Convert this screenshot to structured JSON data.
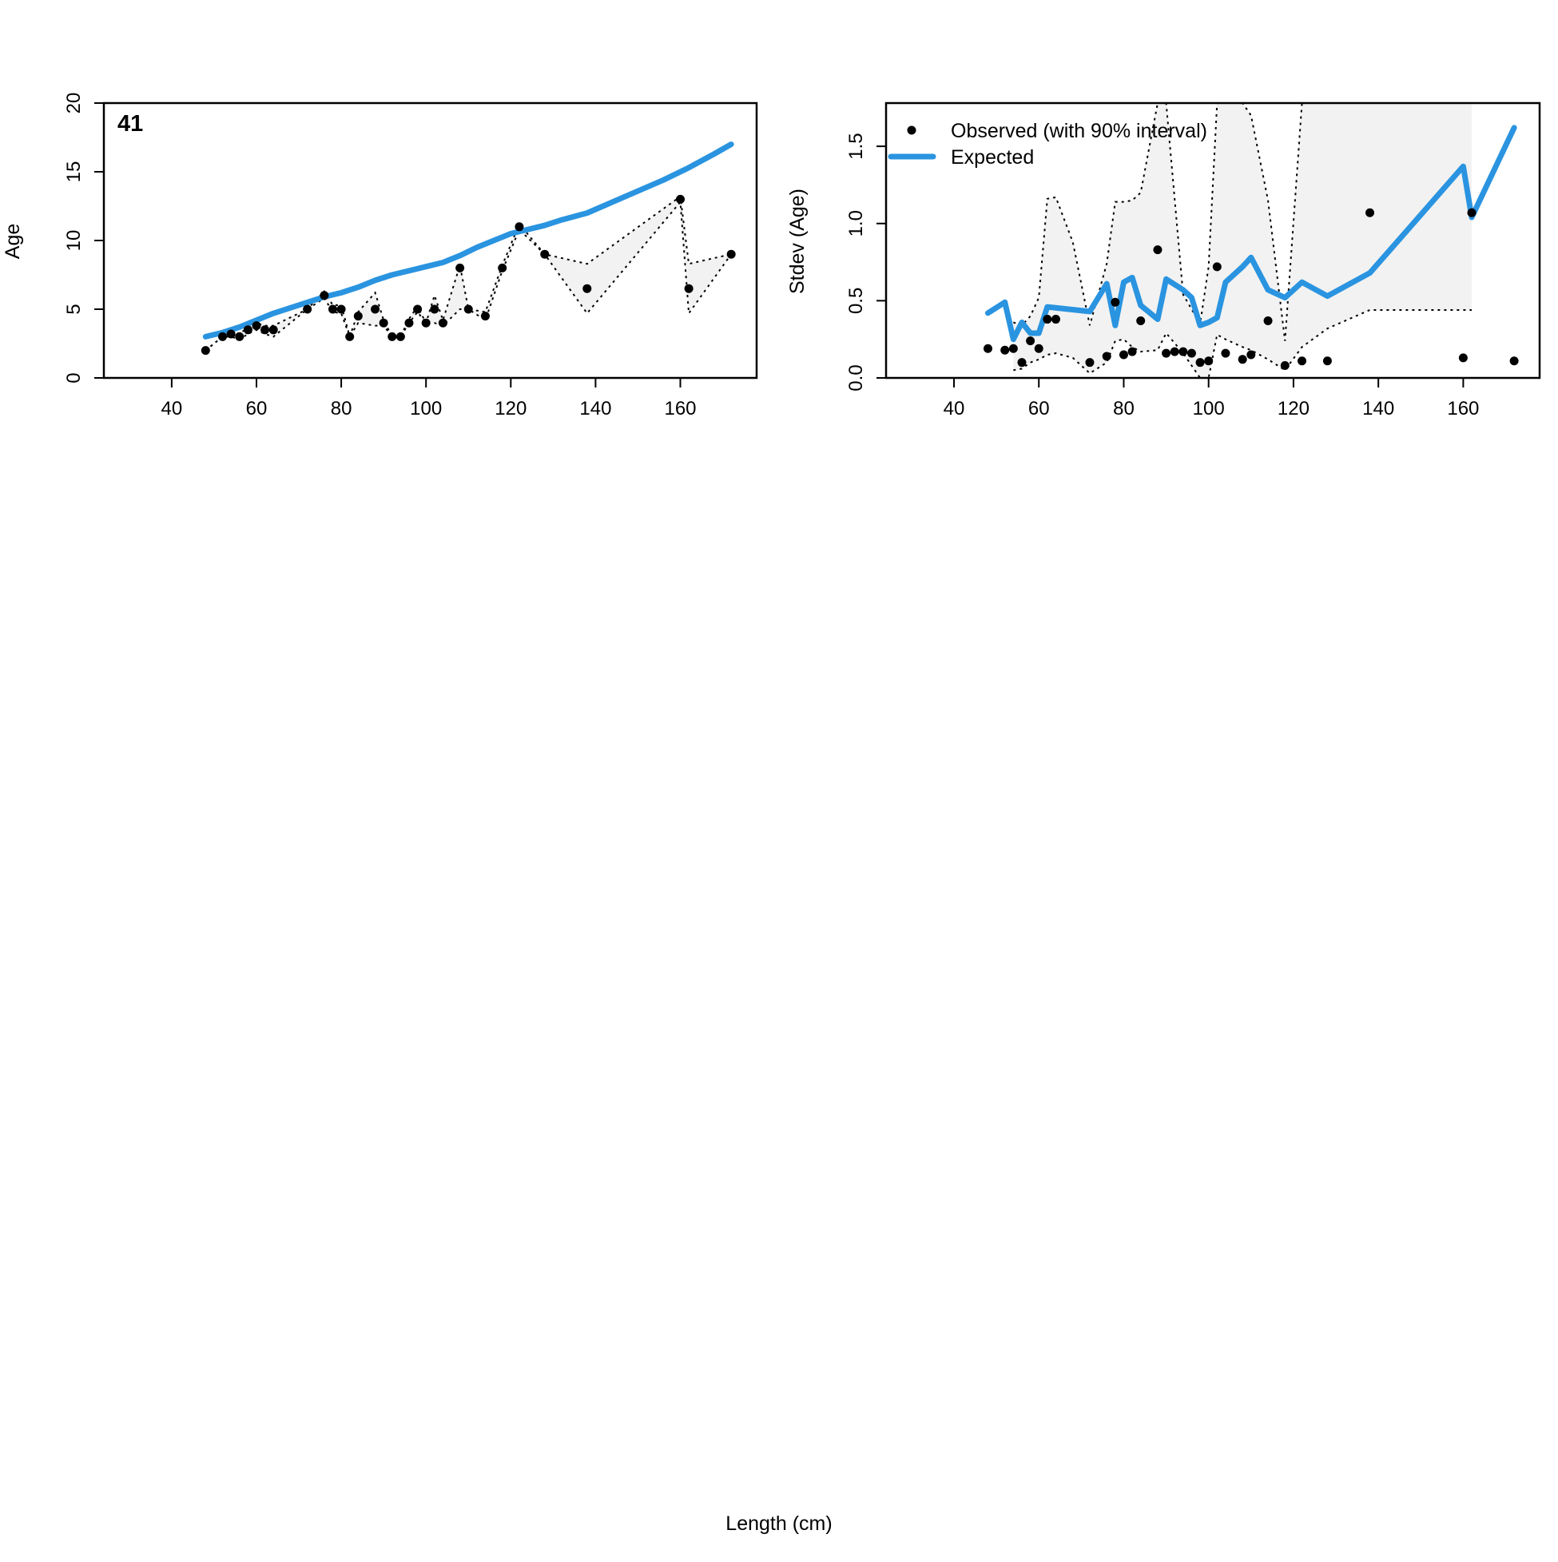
{
  "figure": {
    "common_xlabel": "Length (cm)"
  },
  "chart_data": [
    {
      "type": "line",
      "panel_label": "41",
      "xlabel": "",
      "ylabel": "Age",
      "xlim": [
        24,
        178
      ],
      "ylim": [
        0,
        20
      ],
      "xticks": [
        40,
        60,
        80,
        100,
        120,
        140,
        160
      ],
      "yticks": [
        0,
        5,
        10,
        15,
        20
      ],
      "series": [
        {
          "name": "Expected",
          "style": "line",
          "color": "#2a94e0",
          "x": [
            48,
            52,
            56,
            60,
            64,
            68,
            72,
            76,
            80,
            84,
            88,
            92,
            96,
            100,
            104,
            108,
            112,
            116,
            120,
            124,
            128,
            132,
            138,
            144,
            150,
            156,
            162,
            168,
            172
          ],
          "y": [
            3.0,
            3.3,
            3.7,
            4.2,
            4.7,
            5.1,
            5.5,
            5.9,
            6.2,
            6.6,
            7.1,
            7.5,
            7.8,
            8.1,
            8.4,
            8.9,
            9.5,
            10.0,
            10.5,
            10.8,
            11.1,
            11.5,
            12.0,
            12.8,
            13.6,
            14.4,
            15.3,
            16.3,
            17.0
          ]
        },
        {
          "name": "Observed",
          "style": "points",
          "color": "#000000",
          "x": [
            48,
            52,
            54,
            56,
            58,
            60,
            62,
            64,
            72,
            76,
            78,
            80,
            82,
            84,
            88,
            90,
            92,
            94,
            96,
            98,
            100,
            102,
            104,
            108,
            110,
            114,
            118,
            122,
            128,
            138,
            160,
            162,
            172
          ],
          "y": [
            2,
            3,
            3.2,
            3,
            3.5,
            3.8,
            3.5,
            3.5,
            5,
            6,
            5,
            5,
            3,
            4.5,
            5,
            4,
            3,
            3,
            4,
            5,
            4,
            5,
            4,
            8,
            5,
            4.5,
            8,
            11,
            9,
            6.5,
            13,
            6.5,
            9
          ]
        },
        {
          "name": "90% interval",
          "style": "band",
          "fill": "#f2f2f2",
          "x": [
            48,
            52,
            54,
            56,
            58,
            60,
            62,
            64,
            72,
            76,
            78,
            80,
            82,
            84,
            88,
            90,
            92,
            94,
            96,
            98,
            100,
            102,
            104,
            108,
            110,
            114,
            118,
            122,
            128,
            138,
            160,
            162,
            172
          ],
          "lower": [
            2,
            3,
            3.0,
            2.8,
            3.2,
            3.5,
            3.2,
            3.0,
            5,
            5.8,
            4.8,
            4.7,
            3,
            4.0,
            3.8,
            3.8,
            3,
            3,
            4,
            4.8,
            4,
            4.0,
            3.8,
            5,
            5,
            4.2,
            7.8,
            10.8,
            9,
            4.7,
            12.8,
            4.7,
            9
          ],
          "upper": [
            2,
            3,
            3.4,
            3.2,
            3.7,
            4.0,
            3.8,
            3.8,
            5,
            6.3,
            5.3,
            5.3,
            3,
            4.8,
            6.2,
            4.2,
            3,
            3,
            4.3,
            5.2,
            4,
            6.0,
            4.2,
            8.2,
            5,
            4.8,
            8.2,
            11.2,
            9,
            8.3,
            13.2,
            8.3,
            9
          ]
        }
      ]
    },
    {
      "type": "line",
      "xlabel": "",
      "ylabel": "Stdev (Age)",
      "xlim": [
        24,
        178
      ],
      "ylim": [
        0,
        1.78
      ],
      "xticks": [
        40,
        60,
        80,
        100,
        120,
        140,
        160
      ],
      "yticks": [
        "0.0",
        "0.5",
        "1.0",
        "1.5"
      ],
      "legend": {
        "position": "top-left",
        "entries": [
          {
            "label": "Observed (with 90% interval)",
            "symbol": "point"
          },
          {
            "label": "Expected",
            "symbol": "line"
          }
        ]
      },
      "series": [
        {
          "name": "Expected",
          "style": "line",
          "color": "#2a94e0",
          "x": [
            48,
            52,
            54,
            56,
            58,
            60,
            62,
            72,
            76,
            78,
            80,
            82,
            84,
            88,
            90,
            94,
            96,
            98,
            100,
            102,
            104,
            108,
            110,
            114,
            118,
            122,
            128,
            138,
            160,
            162,
            172
          ],
          "y": [
            0.42,
            0.49,
            0.25,
            0.36,
            0.29,
            0.29,
            0.46,
            0.43,
            0.61,
            0.34,
            0.62,
            0.65,
            0.47,
            0.38,
            0.64,
            0.57,
            0.52,
            0.34,
            0.36,
            0.39,
            0.62,
            0.72,
            0.78,
            0.57,
            0.52,
            0.62,
            0.53,
            0.68,
            1.37,
            1.04,
            1.62
          ]
        },
        {
          "name": "Observed (with 90% interval)",
          "style": "points",
          "color": "#000000",
          "x": [
            48,
            52,
            54,
            56,
            58,
            60,
            62,
            64,
            72,
            76,
            78,
            80,
            82,
            84,
            88,
            90,
            92,
            94,
            96,
            98,
            100,
            102,
            104,
            108,
            110,
            114,
            118,
            122,
            128,
            138,
            160,
            162,
            172
          ],
          "y": [
            0.19,
            0.18,
            0.19,
            0.1,
            0.24,
            0.19,
            0.38,
            0.38,
            0.1,
            0.14,
            0.49,
            0.15,
            0.17,
            0.37,
            0.83,
            0.16,
            0.17,
            0.17,
            0.16,
            0.1,
            0.11,
            0.72,
            0.16,
            0.12,
            0.15,
            0.37,
            0.08,
            0.11,
            0.11,
            1.07,
            0.13,
            1.07,
            0.11
          ]
        },
        {
          "name": "90% interval",
          "style": "band",
          "fill": "#f2f2f2",
          "x": [
            54,
            56,
            58,
            60,
            62,
            64,
            68,
            72,
            76,
            78,
            80,
            82,
            84,
            88,
            90,
            94,
            98,
            100,
            102,
            104,
            108,
            110,
            114,
            118,
            122,
            128,
            138,
            162
          ],
          "lower": [
            0.05,
            0.06,
            0.1,
            0.12,
            0.15,
            0.16,
            0.13,
            0.03,
            0.1,
            0.24,
            0.25,
            0.2,
            0.17,
            0.18,
            0.29,
            0.16,
            0.0,
            0.0,
            0.28,
            0.25,
            0.2,
            0.18,
            0.12,
            0.05,
            0.2,
            0.32,
            0.44,
            0.44
          ],
          "upper": [
            0.36,
            0.34,
            0.4,
            0.52,
            1.16,
            1.17,
            0.88,
            0.34,
            0.74,
            1.14,
            1.14,
            1.15,
            1.2,
            1.78,
            1.78,
            0.54,
            0.35,
            0.72,
            1.78,
            1.78,
            1.78,
            1.7,
            1.15,
            0.24,
            1.78,
            1.78,
            1.78,
            1.78
          ]
        }
      ]
    }
  ]
}
